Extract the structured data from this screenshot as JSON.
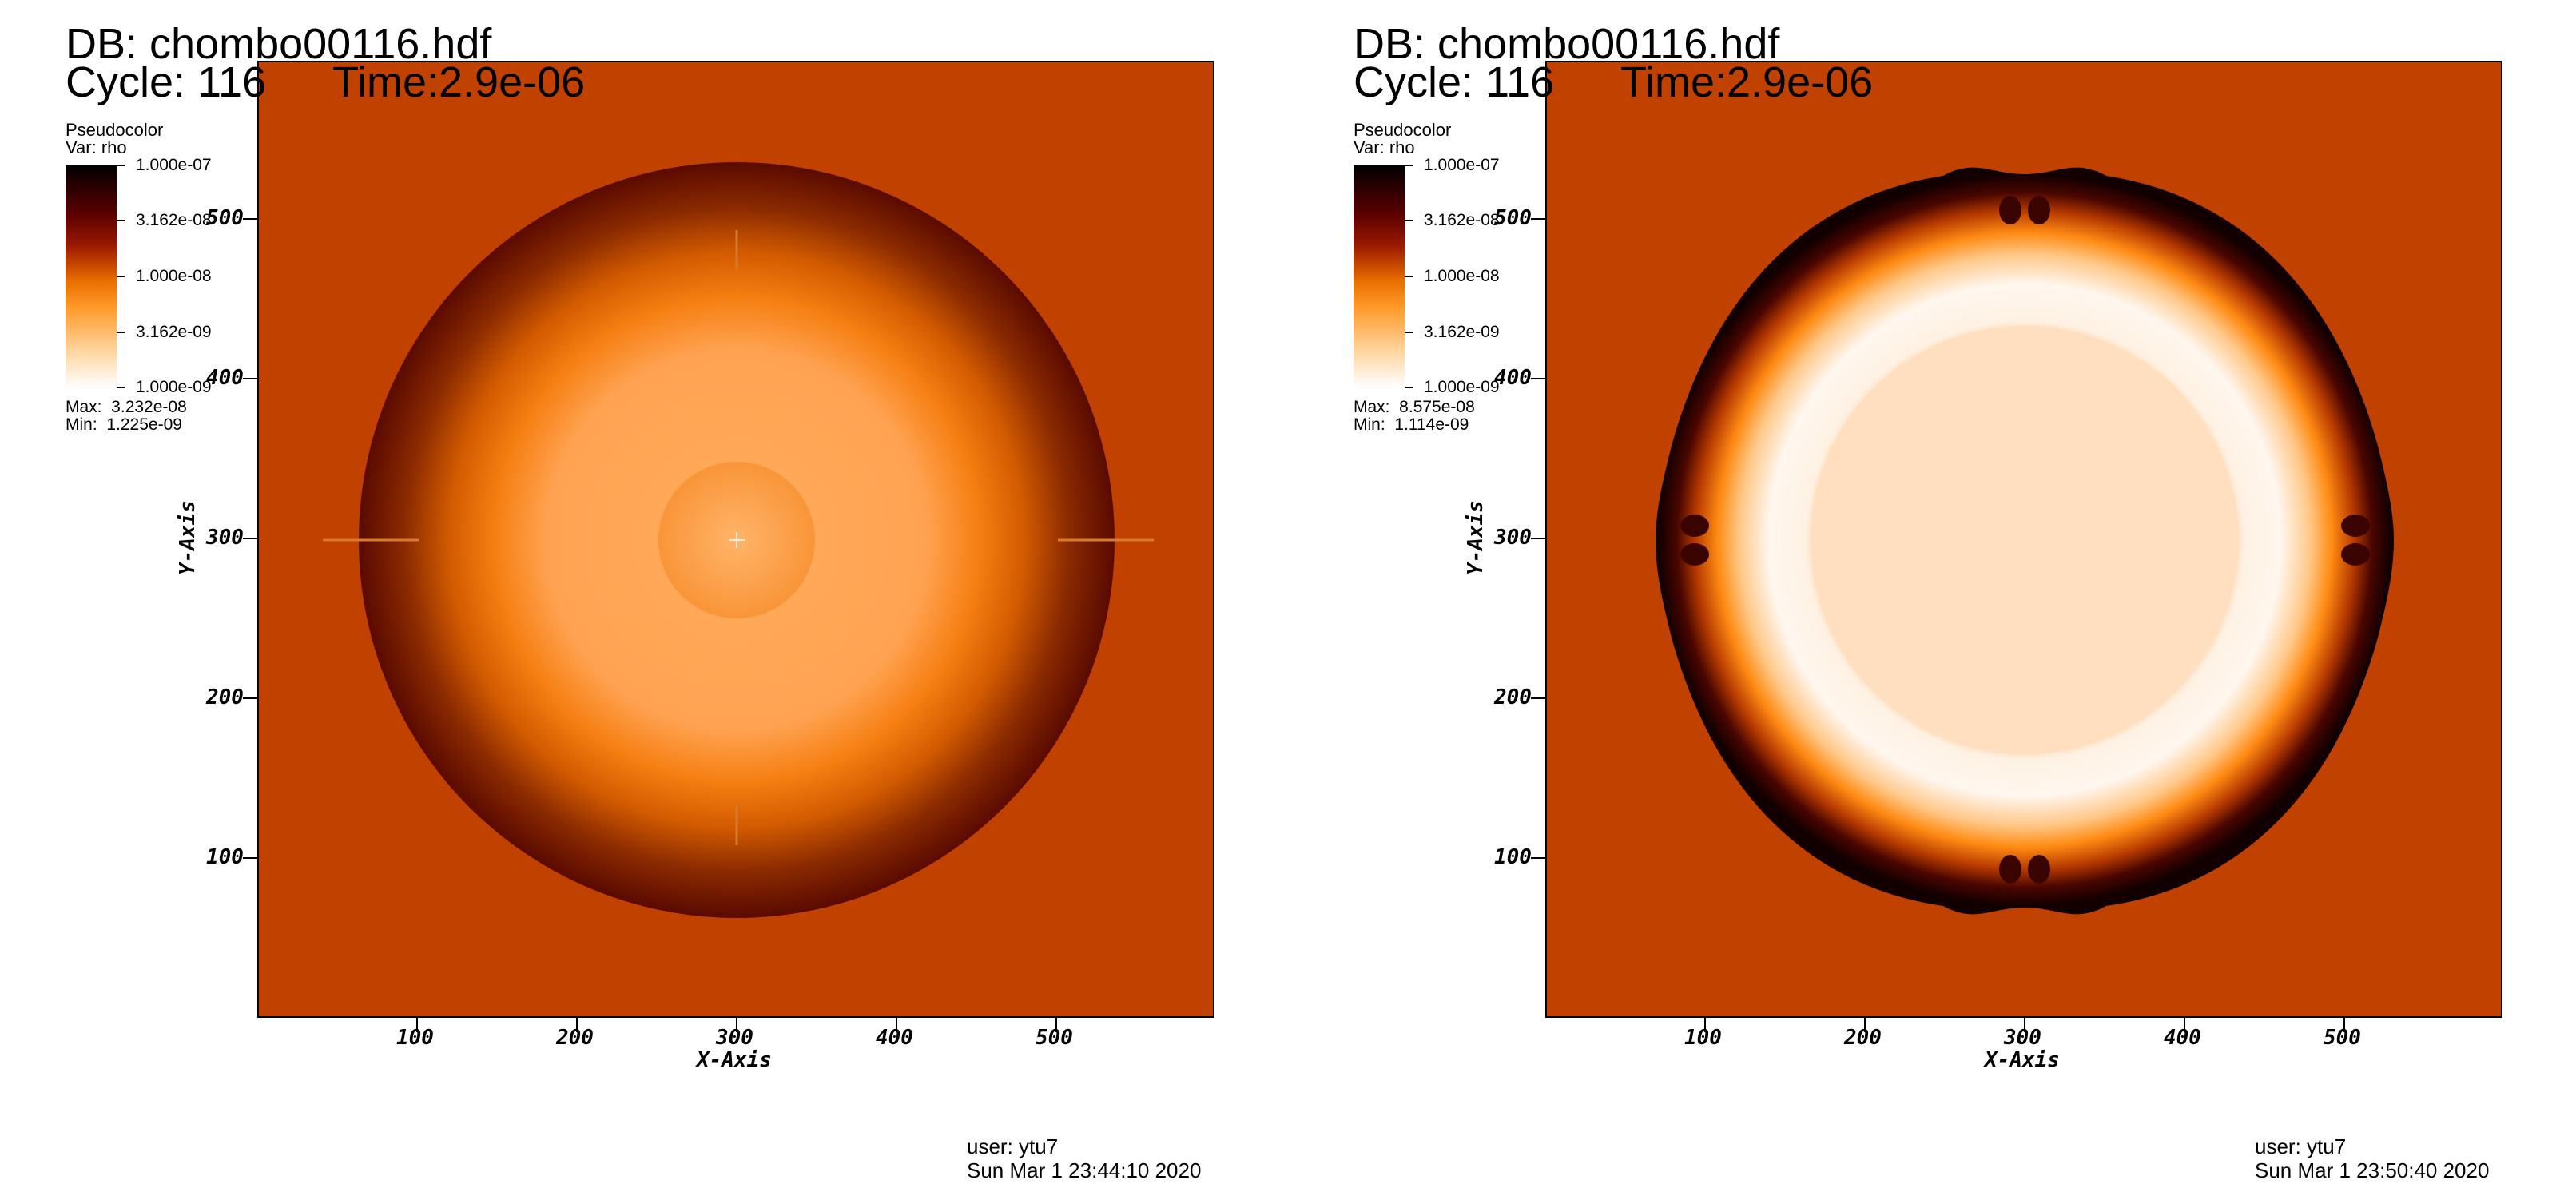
{
  "panels": [
    {
      "db": "DB: chombo00116.hdf",
      "cycle": "Cycle: 116",
      "time": "Time:2.9e-06",
      "legend": {
        "type": "Pseudocolor",
        "var": "Var: rho",
        "labels": [
          "1.000e-07",
          "3.162e-08",
          "1.000e-08",
          "3.162e-09",
          "1.000e-09"
        ]
      },
      "max": "Max:  3.232e-08",
      "min": "Min:  1.225e-09",
      "axes": {
        "x_title": "X-Axis",
        "y_title": "Y-Axis",
        "x_ticks": [
          "100",
          "200",
          "300",
          "400",
          "500"
        ],
        "y_ticks": [
          "100",
          "200",
          "300",
          "400",
          "500"
        ]
      },
      "user": "user: ytu7",
      "date": "Sun Mar  1 23:44:10 2020"
    },
    {
      "db": "DB: chombo00116.hdf",
      "cycle": "Cycle: 116",
      "time": "Time:2.9e-06",
      "legend": {
        "type": "Pseudocolor",
        "var": "Var: rho",
        "labels": [
          "1.000e-07",
          "3.162e-08",
          "1.000e-08",
          "3.162e-09",
          "1.000e-09"
        ]
      },
      "max": "Max:  8.575e-08",
      "min": "Min:  1.114e-09",
      "axes": {
        "x_title": "X-Axis",
        "y_title": "Y-Axis",
        "x_ticks": [
          "100",
          "200",
          "300",
          "400",
          "500"
        ],
        "y_ticks": [
          "100",
          "200",
          "300",
          "400",
          "500"
        ]
      },
      "user": "user: ytu7",
      "date": "Sun Mar  1 23:50:40 2020"
    }
  ],
  "colors": {
    "background_field": "#c14100",
    "colormap": [
      "#000000",
      "#5a0000",
      "#9a1800",
      "#e96e00",
      "#ff9a2a",
      "#ffd7a3",
      "#ffffff"
    ]
  }
}
